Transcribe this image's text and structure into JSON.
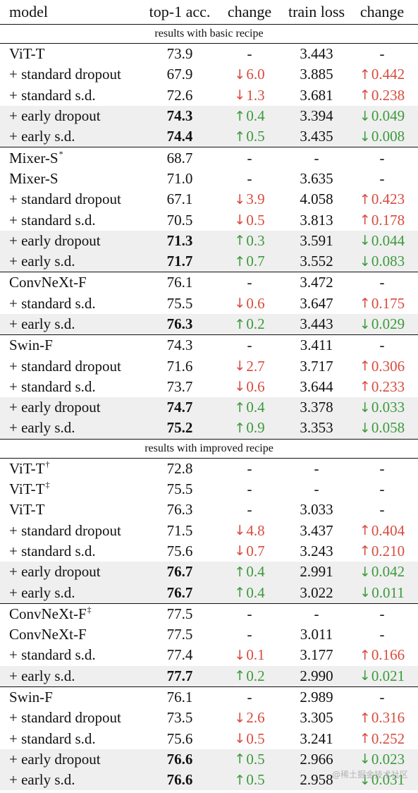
{
  "header": {
    "model": "model",
    "acc": "top-1 acc.",
    "change1": "change",
    "loss": "train loss",
    "change2": "change"
  },
  "sections": [
    {
      "title": "results with basic recipe",
      "groups": [
        [
          {
            "model": "ViT-T",
            "acc": "73.9",
            "d1": "-",
            "loss": "3.443",
            "d2": "-"
          },
          {
            "model": "+ standard dropout",
            "acc": "67.9",
            "d1": "↓6.0",
            "d1c": "bad",
            "loss": "3.885",
            "d2": "↑0.442",
            "d2c": "bad"
          },
          {
            "model": "+ standard s.d.",
            "acc": "72.6",
            "d1": "↓1.3",
            "d1c": "bad",
            "loss": "3.681",
            "d2": "↑0.238",
            "d2c": "bad"
          },
          {
            "model": "+ early dropout",
            "acc": "74.3",
            "bold": true,
            "hl": true,
            "d1": "↑0.4",
            "d1c": "good",
            "loss": "3.394",
            "d2": "↓0.049",
            "d2c": "good"
          },
          {
            "model": "+ early s.d.",
            "acc": "74.4",
            "bold": true,
            "hl": true,
            "d1": "↑0.5",
            "d1c": "good",
            "loss": "3.435",
            "d2": "↓0.008",
            "d2c": "good"
          }
        ],
        [
          {
            "model": "Mixer-S",
            "sup": "*",
            "acc": "68.7",
            "d1": "-",
            "loss": "-",
            "d2": "-"
          },
          {
            "model": "Mixer-S",
            "acc": "71.0",
            "d1": "-",
            "loss": "3.635",
            "d2": "-"
          },
          {
            "model": "+ standard dropout",
            "acc": "67.1",
            "d1": "↓3.9",
            "d1c": "bad",
            "loss": "4.058",
            "d2": "↑0.423",
            "d2c": "bad"
          },
          {
            "model": "+ standard s.d.",
            "acc": "70.5",
            "d1": "↓0.5",
            "d1c": "bad",
            "loss": "3.813",
            "d2": "↑0.178",
            "d2c": "bad"
          },
          {
            "model": "+ early dropout",
            "acc": "71.3",
            "bold": true,
            "hl": true,
            "d1": "↑0.3",
            "d1c": "good",
            "loss": "3.591",
            "d2": "↓0.044",
            "d2c": "good"
          },
          {
            "model": "+ early s.d.",
            "acc": "71.7",
            "bold": true,
            "hl": true,
            "d1": "↑0.7",
            "d1c": "good",
            "loss": "3.552",
            "d2": "↓0.083",
            "d2c": "good"
          }
        ],
        [
          {
            "model": "ConvNeXt-F",
            "acc": "76.1",
            "d1": "-",
            "loss": "3.472",
            "d2": "-"
          },
          {
            "model": "+ standard s.d.",
            "acc": "75.5",
            "d1": "↓0.6",
            "d1c": "bad",
            "loss": "3.647",
            "d2": "↑0.175",
            "d2c": "bad"
          },
          {
            "model": "+ early s.d.",
            "acc": "76.3",
            "bold": true,
            "hl": true,
            "d1": "↑0.2",
            "d1c": "good",
            "loss": "3.443",
            "d2": "↓0.029",
            "d2c": "good"
          }
        ],
        [
          {
            "model": "Swin-F",
            "acc": "74.3",
            "d1": "-",
            "loss": "3.411",
            "d2": "-"
          },
          {
            "model": "+ standard dropout",
            "acc": "71.6",
            "d1": "↓2.7",
            "d1c": "bad",
            "loss": "3.717",
            "d2": "↑0.306",
            "d2c": "bad"
          },
          {
            "model": "+ standard s.d.",
            "acc": "73.7",
            "d1": "↓0.6",
            "d1c": "bad",
            "loss": "3.644",
            "d2": "↑0.233",
            "d2c": "bad"
          },
          {
            "model": "+ early dropout",
            "acc": "74.7",
            "bold": true,
            "hl": true,
            "d1": "↑0.4",
            "d1c": "good",
            "loss": "3.378",
            "d2": "↓0.033",
            "d2c": "good"
          },
          {
            "model": "+ early s.d.",
            "acc": "75.2",
            "bold": true,
            "hl": true,
            "d1": "↑0.9",
            "d1c": "good",
            "loss": "3.353",
            "d2": "↓0.058",
            "d2c": "good"
          }
        ]
      ]
    },
    {
      "title": "results with improved recipe",
      "groups": [
        [
          {
            "model": "ViT-T",
            "sup": "†",
            "acc": "72.8",
            "d1": "-",
            "loss": "-",
            "d2": "-"
          },
          {
            "model": "ViT-T",
            "sup": "‡",
            "acc": "75.5",
            "d1": "-",
            "loss": "-",
            "d2": "-"
          },
          {
            "model": "ViT-T",
            "acc": "76.3",
            "d1": "-",
            "loss": "3.033",
            "d2": "-"
          },
          {
            "model": "+ standard dropout",
            "acc": "71.5",
            "d1": "↓4.8",
            "d1c": "bad",
            "loss": "3.437",
            "d2": "↑0.404",
            "d2c": "bad"
          },
          {
            "model": "+ standard s.d.",
            "acc": "75.6",
            "d1": "↓0.7",
            "d1c": "bad",
            "loss": "3.243",
            "d2": "↑0.210",
            "d2c": "bad"
          },
          {
            "model": "+ early dropout",
            "acc": "76.7",
            "bold": true,
            "hl": true,
            "d1": "↑0.4",
            "d1c": "good",
            "loss": "2.991",
            "d2": "↓0.042",
            "d2c": "good"
          },
          {
            "model": "+ early s.d.",
            "acc": "76.7",
            "bold": true,
            "hl": true,
            "d1": "↑0.4",
            "d1c": "good",
            "loss": "3.022",
            "d2": "↓0.011",
            "d2c": "good"
          }
        ],
        [
          {
            "model": "ConvNeXt-F",
            "sup": "‡",
            "acc": "77.5",
            "d1": "-",
            "loss": "-",
            "d2": "-"
          },
          {
            "model": "ConvNeXt-F",
            "acc": "77.5",
            "d1": "-",
            "loss": "3.011",
            "d2": "-"
          },
          {
            "model": "+ standard s.d.",
            "acc": "77.4",
            "d1": "↓0.1",
            "d1c": "bad",
            "loss": "3.177",
            "d2": "↑0.166",
            "d2c": "bad"
          },
          {
            "model": "+ early s.d.",
            "acc": "77.7",
            "bold": true,
            "hl": true,
            "d1": "↑0.2",
            "d1c": "good",
            "loss": "2.990",
            "d2": "↓0.021",
            "d2c": "good"
          }
        ],
        [
          {
            "model": "Swin-F",
            "acc": "76.1",
            "d1": "-",
            "loss": "2.989",
            "d2": "-"
          },
          {
            "model": "+ standard dropout",
            "acc": "73.5",
            "d1": "↓2.6",
            "d1c": "bad",
            "loss": "3.305",
            "d2": "↑0.316",
            "d2c": "bad"
          },
          {
            "model": "+ standard s.d.",
            "acc": "75.6",
            "d1": "↓0.5",
            "d1c": "bad",
            "loss": "3.241",
            "d2": "↑0.252",
            "d2c": "bad"
          },
          {
            "model": "+ early dropout",
            "acc": "76.6",
            "bold": true,
            "hl": true,
            "d1": "↑0.5",
            "d1c": "good",
            "loss": "2.966",
            "d2": "↓0.023",
            "d2c": "good"
          },
          {
            "model": "+ early s.d.",
            "acc": "76.6",
            "bold": true,
            "hl": true,
            "d1": "↑0.5",
            "d1c": "good",
            "loss": "2.958",
            "d2": "↓0.031",
            "d2c": "good"
          }
        ]
      ]
    }
  ],
  "colors": {
    "bad": "#d84b3e",
    "good": "#3c9a3c",
    "highlight": "#efefef"
  },
  "watermark": "@稀土掘金技术社区"
}
